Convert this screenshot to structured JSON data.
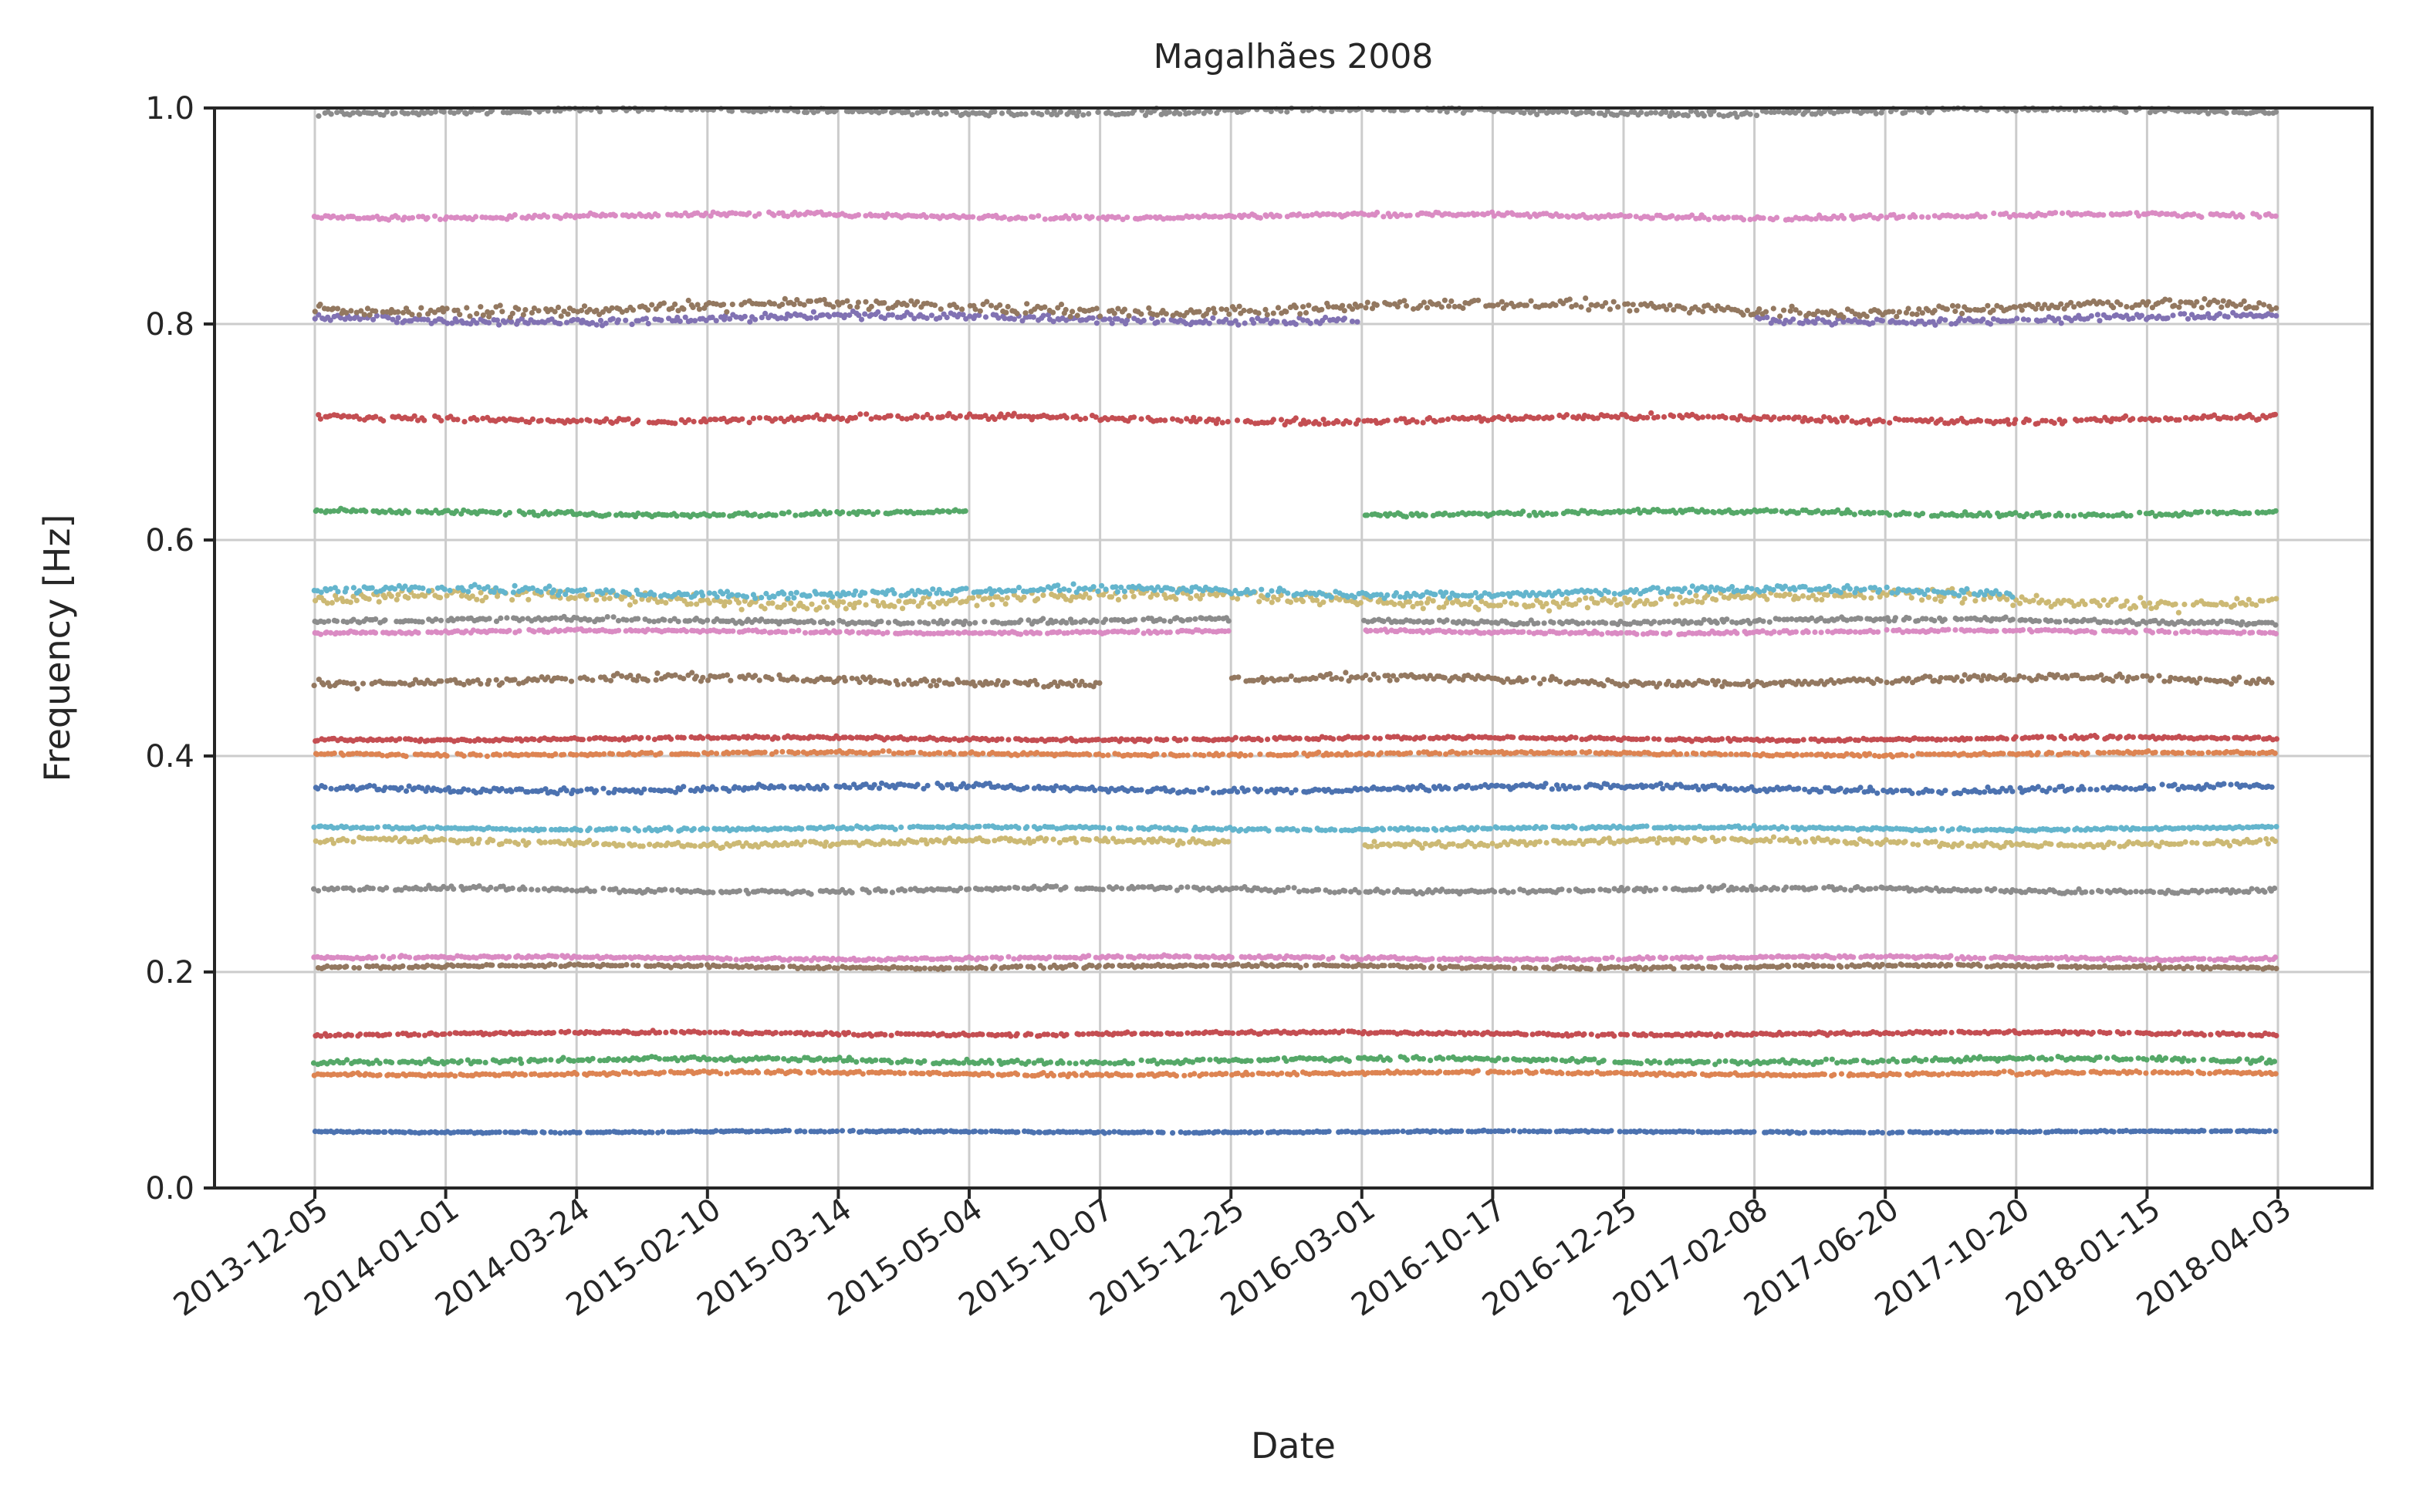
{
  "chart_data": {
    "type": "scatter",
    "title": "Magalhães 2008",
    "xlabel": "Date",
    "ylabel": "Frequency [Hz]",
    "ylim": [
      0.0,
      1.0
    ],
    "yticks": [
      "0.0",
      "0.2",
      "0.4",
      "0.6",
      "0.8",
      "1.0"
    ],
    "x_categories": [
      "2013-12-05",
      "2014-01-01",
      "2014-03-24",
      "2015-02-10",
      "2015-03-14",
      "2015-05-04",
      "2015-10-07",
      "2015-12-25",
      "2016-03-01",
      "2016-10-17",
      "2016-12-25",
      "2017-02-08",
      "2017-06-20",
      "2017-10-20",
      "2018-01-15",
      "2018-04-03"
    ],
    "grid": true,
    "legend": "none",
    "series": [
      {
        "color": "#4c72b0",
        "mean_frequency": 0.052,
        "noise": 0.001,
        "gaps": []
      },
      {
        "color": "#dd8452",
        "mean_frequency": 0.106,
        "noise": 0.002,
        "gaps": []
      },
      {
        "color": "#55a868",
        "mean_frequency": 0.118,
        "noise": 0.003,
        "gaps": []
      },
      {
        "color": "#c44e52",
        "mean_frequency": 0.143,
        "noise": 0.002,
        "gaps": []
      },
      {
        "color": "#937860",
        "mean_frequency": 0.205,
        "noise": 0.002,
        "gaps": []
      },
      {
        "color": "#da8bc3",
        "mean_frequency": 0.213,
        "noise": 0.002,
        "gaps": []
      },
      {
        "color": "#8c8c8c",
        "mean_frequency": 0.276,
        "noise": 0.003,
        "gaps": []
      },
      {
        "color": "#ccb974",
        "mean_frequency": 0.32,
        "noise": 0.004,
        "gaps": [
          [
            "2015-12-25",
            "2016-03-01"
          ]
        ]
      },
      {
        "color": "#64b5cd",
        "mean_frequency": 0.333,
        "noise": 0.002,
        "gaps": []
      },
      {
        "color": "#4c72b0",
        "mean_frequency": 0.37,
        "noise": 0.004,
        "gaps": []
      },
      {
        "color": "#dd8452",
        "mean_frequency": 0.402,
        "noise": 0.002,
        "gaps": []
      },
      {
        "color": "#c44e52",
        "mean_frequency": 0.416,
        "noise": 0.002,
        "gaps": []
      },
      {
        "color": "#937860",
        "mean_frequency": 0.47,
        "noise": 0.005,
        "gaps": [
          [
            "2015-10-07",
            "2015-12-25"
          ]
        ]
      },
      {
        "color": "#da8bc3",
        "mean_frequency": 0.515,
        "noise": 0.002,
        "gaps": [
          [
            "2015-12-25",
            "2016-03-01"
          ]
        ]
      },
      {
        "color": "#8c8c8c",
        "mean_frequency": 0.525,
        "noise": 0.003,
        "gaps": [
          [
            "2015-12-25",
            "2016-03-01"
          ]
        ]
      },
      {
        "color": "#ccb974",
        "mean_frequency": 0.545,
        "noise": 0.008,
        "gaps": []
      },
      {
        "color": "#64b5cd",
        "mean_frequency": 0.552,
        "noise": 0.005,
        "gaps": [
          [
            "2017-10-20",
            "2018-04-03"
          ]
        ]
      },
      {
        "color": "#55a868",
        "mean_frequency": 0.625,
        "noise": 0.003,
        "gaps": [
          [
            "2015-05-04",
            "2016-03-01"
          ]
        ]
      },
      {
        "color": "#c44e52",
        "mean_frequency": 0.712,
        "noise": 0.004,
        "gaps": []
      },
      {
        "color": "#8172b3",
        "mean_frequency": 0.805,
        "noise": 0.005,
        "gaps": [
          [
            "2016-03-01",
            "2017-02-08"
          ]
        ]
      },
      {
        "color": "#937860",
        "mean_frequency": 0.815,
        "noise": 0.007,
        "gaps": []
      },
      {
        "color": "#da8bc3",
        "mean_frequency": 0.9,
        "noise": 0.003,
        "gaps": []
      },
      {
        "color": "#8c8c8c",
        "mean_frequency": 0.997,
        "noise": 0.004,
        "gaps": []
      }
    ]
  }
}
